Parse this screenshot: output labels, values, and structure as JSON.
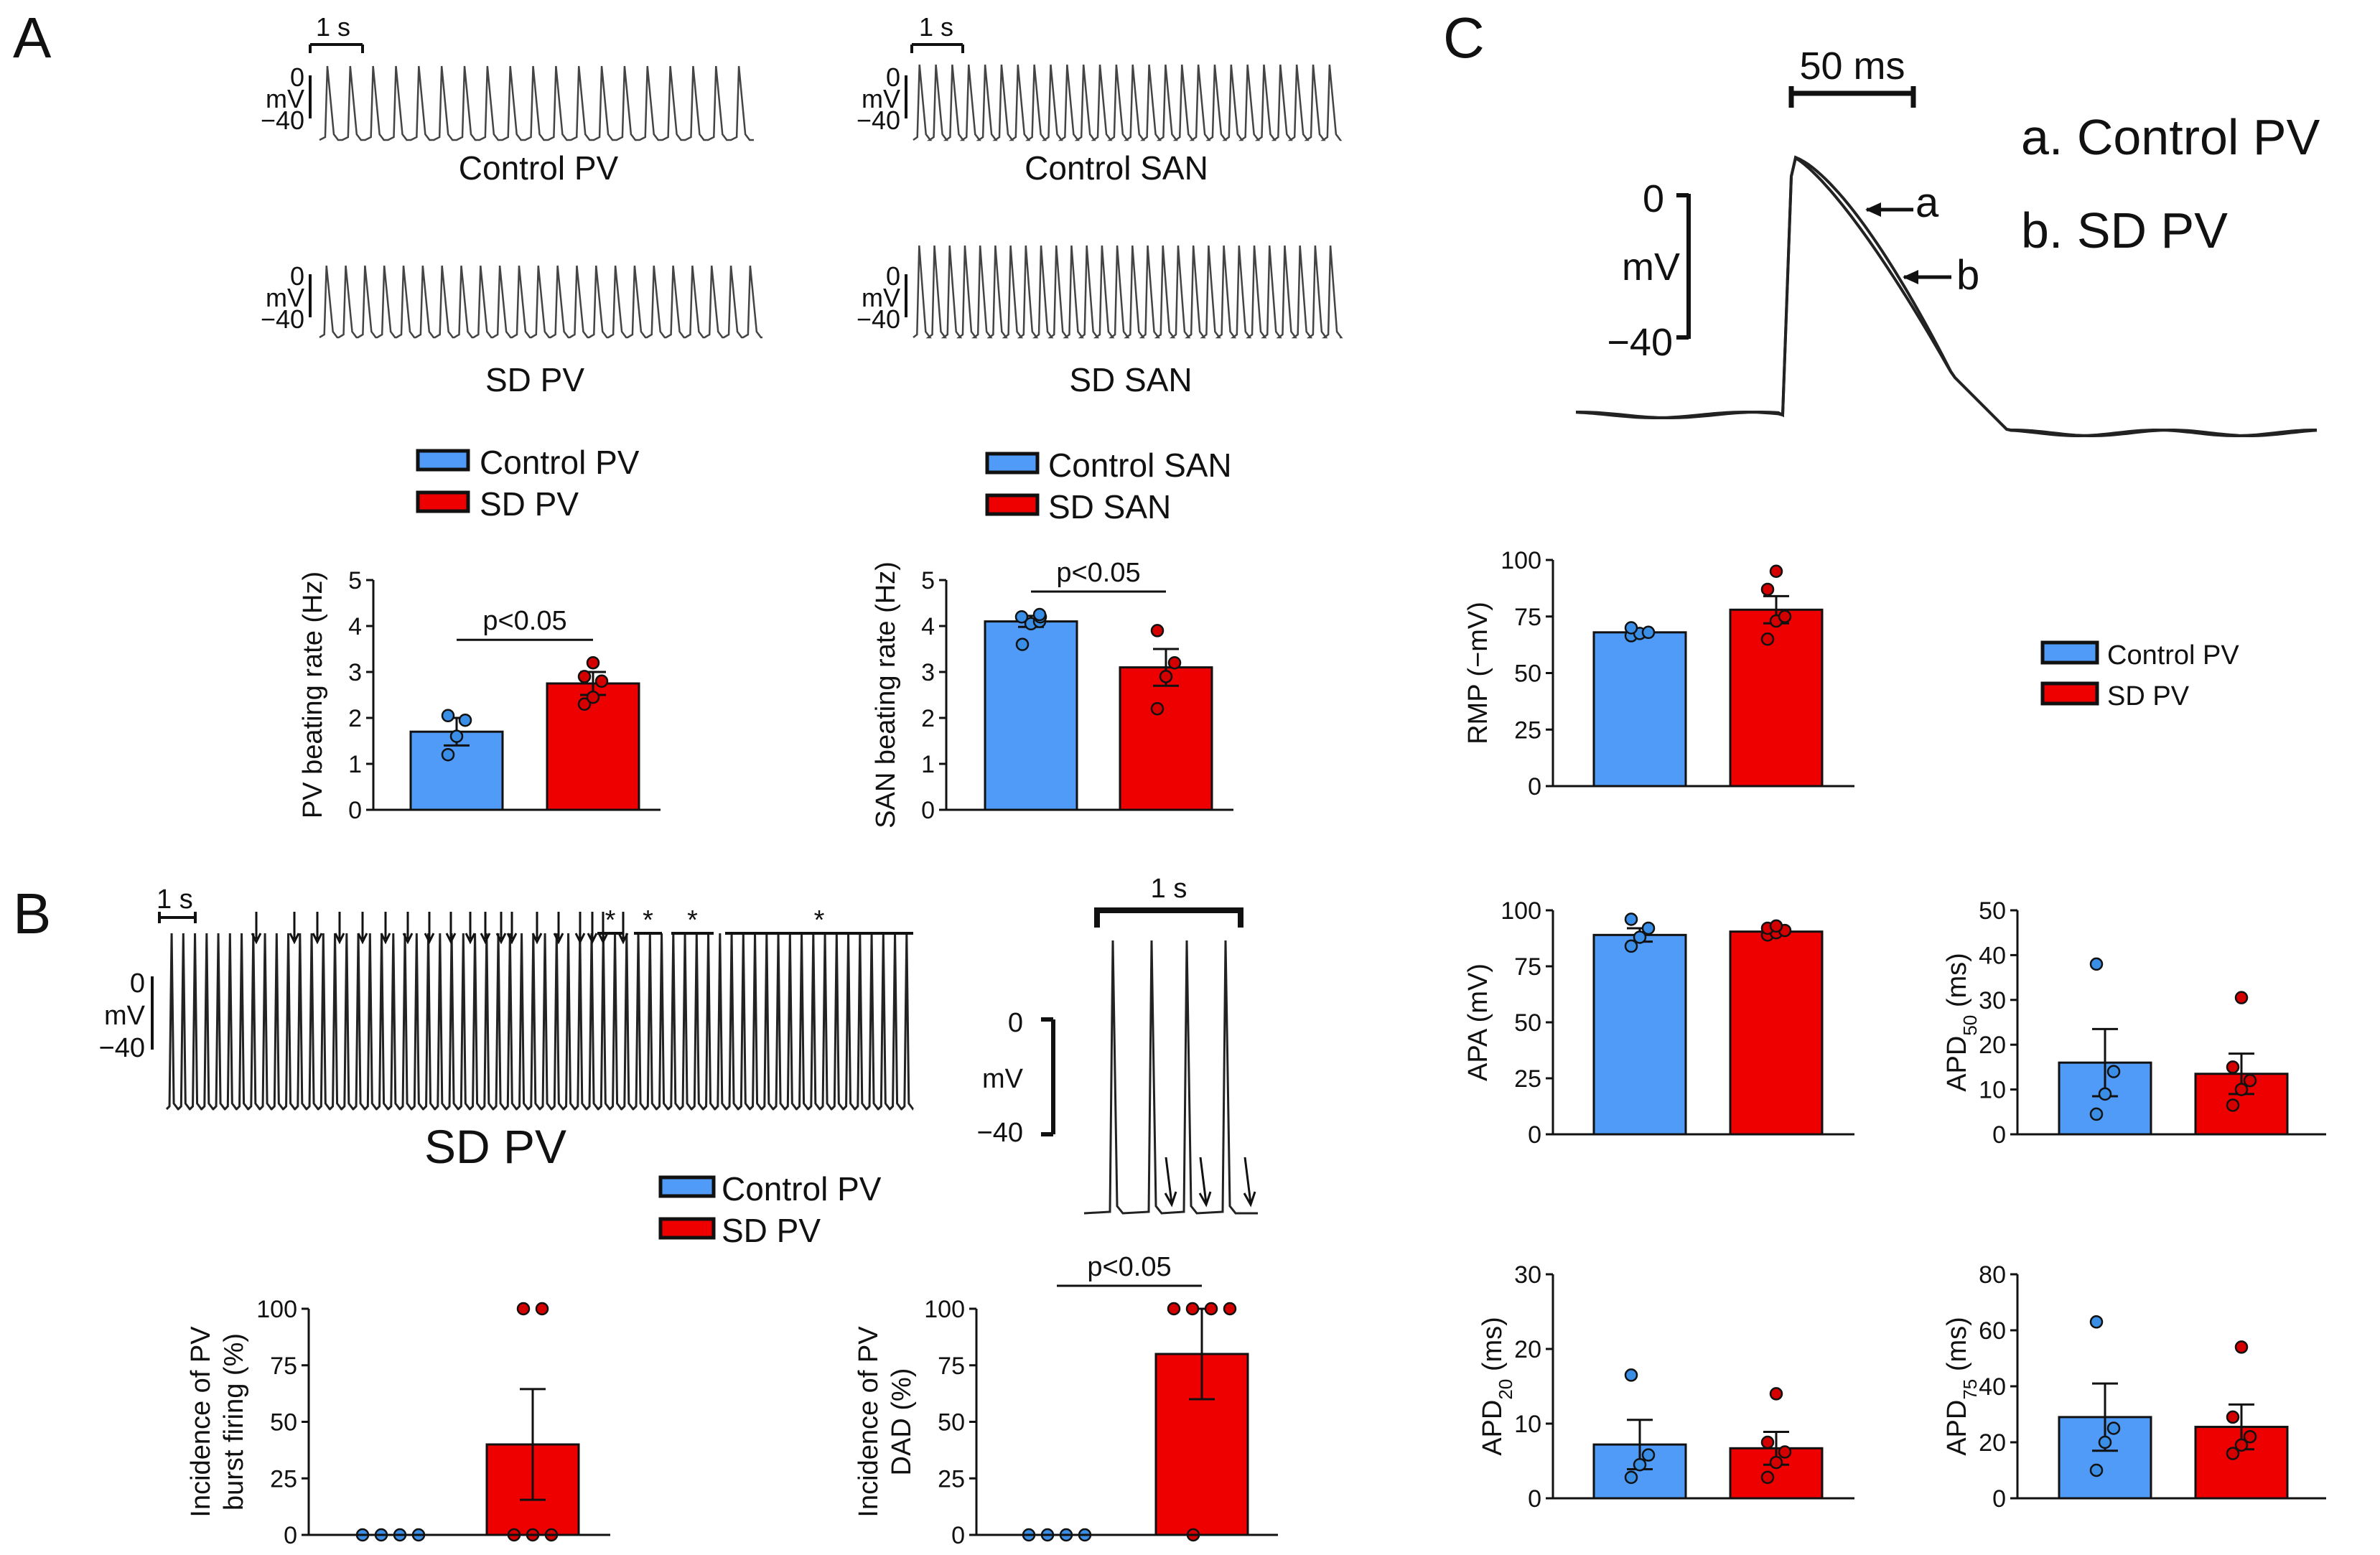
{
  "colors": {
    "control": "#4f9bf7",
    "sd": "#ee0000",
    "trace": "#222222",
    "control_dot": "#3b8ee6",
    "sd_dot": "#d40000"
  },
  "panels": {
    "A": "A",
    "B": "B",
    "C": "C"
  },
  "traces": {
    "control_pv": {
      "label": "Control PV",
      "scale_time": "1 s",
      "scale_v_top": "0",
      "scale_v_unit": "mV",
      "scale_v_bottom": "−40",
      "spikes": 19
    },
    "control_san": {
      "label": "Control SAN",
      "scale_time": "1 s",
      "scale_v_top": "0",
      "scale_v_unit": "mV",
      "scale_v_bottom": "−40",
      "spikes": 26
    },
    "sd_pv": {
      "label": "SD PV",
      "scale_v_top": "0",
      "scale_v_unit": "mV",
      "scale_v_bottom": "−40",
      "spikes": 23
    },
    "sd_san": {
      "label": "SD SAN",
      "scale_v_top": "0",
      "scale_v_unit": "mV",
      "scale_v_bottom": "−40",
      "spikes": 28
    },
    "b_long": {
      "label": "SD PV",
      "scale_time": "1 s",
      "scale_v_top": "0",
      "scale_v_unit": "mV",
      "scale_v_bottom": "−40",
      "spikes": 64,
      "star": "*"
    },
    "b_zoom": {
      "scale_time": "1 s",
      "scale_v_top": "0",
      "scale_v_unit": "mV",
      "scale_v_bottom": "−40"
    },
    "c_overlay": {
      "scale_time": "50 ms",
      "scale_v_top": "0",
      "scale_v_unit": "mV",
      "scale_v_bottom": "−40",
      "arrow_a": "a",
      "arrow_b": "b",
      "legend_a": "a. Control PV",
      "legend_b": "b. SD PV"
    }
  },
  "legends": {
    "pv": {
      "control": "Control PV",
      "sd": "SD PV"
    },
    "san": {
      "control": "Control SAN",
      "sd": "SD SAN"
    }
  },
  "chart_data": [
    {
      "id": "pv_rate",
      "type": "bar",
      "title": "",
      "xlabel": "",
      "ylabel": "PV beating rate (Hz)",
      "ylim": [
        0,
        5
      ],
      "yticks": [
        0,
        1,
        2,
        3,
        4,
        5
      ],
      "categories": [
        "Control PV",
        "SD PV"
      ],
      "values": [
        1.7,
        2.75
      ],
      "sem": [
        0.3,
        0.25
      ],
      "points": [
        [
          1.2,
          1.6,
          1.95,
          2.05
        ],
        [
          2.3,
          2.45,
          2.8,
          2.9,
          3.2
        ]
      ],
      "annotation": "p<0.05"
    },
    {
      "id": "san_rate",
      "type": "bar",
      "title": "",
      "xlabel": "",
      "ylabel": "SAN beating rate (Hz)",
      "ylim": [
        0,
        5
      ],
      "yticks": [
        0,
        1,
        2,
        3,
        4,
        5
      ],
      "categories": [
        "Control SAN",
        "SD SAN"
      ],
      "values": [
        4.1,
        3.1
      ],
      "sem": [
        0.12,
        0.4
      ],
      "points": [
        [
          3.6,
          4.05,
          4.1,
          4.2,
          4.2,
          4.25
        ],
        [
          2.2,
          2.9,
          3.2,
          3.9
        ]
      ],
      "annotation": "p<0.05"
    },
    {
      "id": "burst",
      "type": "bar",
      "title": "",
      "xlabel": "",
      "ylabel": [
        "Incidence of PV",
        "burst firing (%)"
      ],
      "ylim": [
        0,
        100
      ],
      "yticks": [
        0,
        25,
        50,
        75,
        100
      ],
      "categories": [
        "Control PV",
        "SD PV"
      ],
      "values": [
        0,
        40
      ],
      "sem": [
        0,
        24.5
      ],
      "points": [
        [
          0,
          0,
          0,
          0
        ],
        [
          0,
          0,
          0,
          100,
          100
        ]
      ],
      "annotation": ""
    },
    {
      "id": "dad",
      "type": "bar",
      "title": "",
      "xlabel": "",
      "ylabel": [
        "Incidence of PV",
        "DAD (%)"
      ],
      "ylim": [
        0,
        100
      ],
      "yticks": [
        0,
        25,
        50,
        75,
        100
      ],
      "categories": [
        "Control PV",
        "SD PV"
      ],
      "values": [
        0,
        80
      ],
      "sem": [
        0,
        20
      ],
      "points": [
        [
          0,
          0,
          0,
          0
        ],
        [
          0,
          100,
          100,
          100,
          100
        ]
      ],
      "annotation": "p<0.05"
    },
    {
      "id": "rmp",
      "type": "bar",
      "title": "",
      "xlabel": "",
      "ylabel": "RMP (−mV)",
      "ylim": [
        0,
        100
      ],
      "yticks": [
        0,
        25,
        50,
        75,
        100
      ],
      "categories": [
        "Control PV",
        "SD PV"
      ],
      "values": [
        68,
        78
      ],
      "sem": [
        1.5,
        6
      ],
      "points": [
        [
          66.5,
          67.5,
          68,
          70
        ],
        [
          65,
          73,
          75,
          87,
          95
        ]
      ],
      "annotation": ""
    },
    {
      "id": "apa",
      "type": "bar",
      "title": "",
      "xlabel": "",
      "ylabel": "APA (mV)",
      "ylim": [
        0,
        100
      ],
      "yticks": [
        0,
        25,
        50,
        75,
        100
      ],
      "categories": [
        "Control PV",
        "SD PV"
      ],
      "values": [
        89,
        90.5
      ],
      "sem": [
        3,
        1
      ],
      "points": [
        [
          84,
          88,
          92,
          96
        ],
        [
          89,
          90,
          91,
          92,
          93
        ]
      ],
      "annotation": ""
    },
    {
      "id": "apd50",
      "type": "bar",
      "title": "",
      "xlabel": "",
      "ylabel": "APD50 (ms)",
      "ylim": [
        0,
        50
      ],
      "yticks": [
        0,
        10,
        20,
        30,
        40,
        50
      ],
      "categories": [
        "Control PV",
        "SD PV"
      ],
      "values": [
        16,
        13.5
      ],
      "sem": [
        7.5,
        4.5
      ],
      "points": [
        [
          4.5,
          9,
          14,
          38
        ],
        [
          6.5,
          10,
          12,
          15,
          30.5
        ]
      ],
      "annotation": ""
    },
    {
      "id": "apd20",
      "type": "bar",
      "title": "",
      "xlabel": "",
      "ylabel": "APD20 (ms)",
      "ylim": [
        0,
        30
      ],
      "yticks": [
        0,
        10,
        20,
        30
      ],
      "categories": [
        "Control PV",
        "SD PV"
      ],
      "values": [
        7.2,
        6.7
      ],
      "sem": [
        3.3,
        2.2
      ],
      "points": [
        [
          2.8,
          4.5,
          5.8,
          16.5
        ],
        [
          2.8,
          4.8,
          6.2,
          7.5,
          14
        ]
      ],
      "annotation": ""
    },
    {
      "id": "apd75",
      "type": "bar",
      "title": "",
      "xlabel": "",
      "ylabel": "APD75 (ms)",
      "ylim": [
        0,
        80
      ],
      "yticks": [
        0,
        20,
        40,
        60,
        80
      ],
      "categories": [
        "Control PV",
        "SD PV"
      ],
      "values": [
        29,
        25.5
      ],
      "sem": [
        12,
        8
      ],
      "points": [
        [
          10,
          20,
          25,
          63
        ],
        [
          16,
          19,
          22,
          29,
          54
        ]
      ],
      "annotation": ""
    }
  ]
}
